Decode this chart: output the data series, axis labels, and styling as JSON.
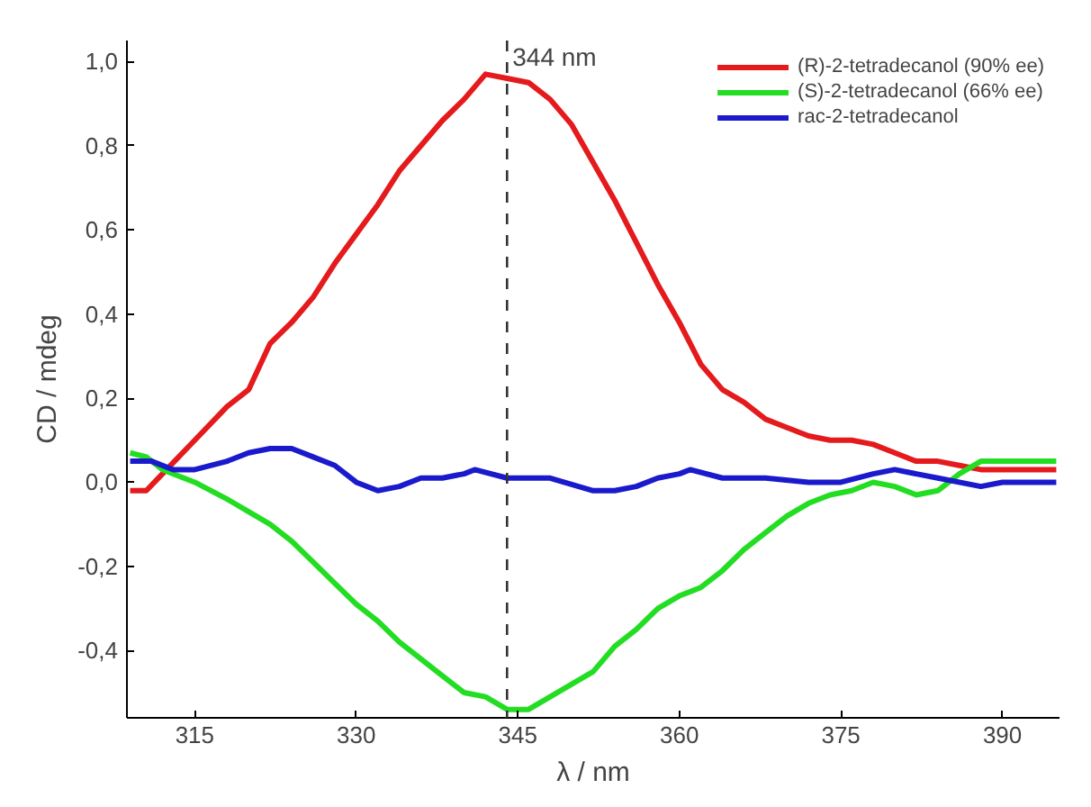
{
  "chart_data": {
    "type": "line",
    "xlabel": "λ / nm",
    "ylabel": "CD / mdeg",
    "xlim": [
      308.7,
      395.3
    ],
    "xticks": [
      315,
      330,
      345,
      360,
      375,
      390
    ],
    "ylim": [
      -0.56,
      1.05
    ],
    "yticks": [
      {
        "value": -0.4,
        "label": "-0,4"
      },
      {
        "value": -0.2,
        "label": "-0,2"
      },
      {
        "value": 0,
        "label": "0,0"
      },
      {
        "value": 0.2,
        "label": "0,2"
      },
      {
        "value": 0.4,
        "label": "0,4"
      },
      {
        "value": 0.6,
        "label": "0,6"
      },
      {
        "value": 0.8,
        "label": "0,8"
      },
      {
        "value": 1.0,
        "label": "1,0"
      }
    ],
    "grid": false,
    "legend": "top right",
    "line_style": "solid",
    "ref_lines": [
      {
        "axis": "x",
        "value": 344,
        "label": "344 nm",
        "line_style": "dashed",
        "color": "#333333"
      }
    ],
    "series": [
      {
        "name": "(R)-2-tetradecanol (90% ee)",
        "color": "#e41a1c",
        "x": [
          309,
          310.5,
          312,
          315,
          318,
          320,
          322,
          324,
          326,
          328,
          330,
          332,
          334,
          336,
          338,
          340,
          342,
          344,
          346,
          348,
          350,
          352,
          354,
          356,
          358,
          360,
          362,
          364,
          366,
          368,
          370,
          372,
          374,
          376,
          378,
          380,
          382,
          384,
          386,
          388,
          390,
          395
        ],
        "values": [
          -0.02,
          -0.02,
          0.02,
          0.1,
          0.18,
          0.22,
          0.33,
          0.38,
          0.44,
          0.52,
          0.59,
          0.66,
          0.74,
          0.8,
          0.86,
          0.91,
          0.97,
          0.96,
          0.95,
          0.91,
          0.85,
          0.76,
          0.67,
          0.57,
          0.47,
          0.38,
          0.28,
          0.22,
          0.19,
          0.15,
          0.13,
          0.11,
          0.1,
          0.1,
          0.09,
          0.07,
          0.05,
          0.05,
          0.04,
          0.03,
          0.03,
          0.03
        ]
      },
      {
        "name": "(S)-2-tetradecanol (66% ee)",
        "color": "#22dd22",
        "x": [
          309,
          310.5,
          312,
          315,
          318,
          320,
          322,
          324,
          326,
          328,
          330,
          332,
          334,
          336,
          338,
          340,
          342,
          344,
          346,
          348,
          350,
          352,
          354,
          356,
          358,
          360,
          362,
          364,
          366,
          368,
          370,
          372,
          374,
          376,
          378,
          380,
          382,
          384,
          386,
          388,
          390,
          395
        ],
        "values": [
          0.07,
          0.06,
          0.03,
          0.0,
          -0.04,
          -0.07,
          -0.1,
          -0.14,
          -0.19,
          -0.24,
          -0.29,
          -0.33,
          -0.38,
          -0.42,
          -0.46,
          -0.5,
          -0.51,
          -0.54,
          -0.54,
          -0.51,
          -0.48,
          -0.45,
          -0.39,
          -0.35,
          -0.3,
          -0.27,
          -0.25,
          -0.21,
          -0.16,
          -0.12,
          -0.08,
          -0.05,
          -0.03,
          -0.02,
          0.0,
          -0.01,
          -0.03,
          -0.02,
          0.02,
          0.05,
          0.05,
          0.05
        ]
      },
      {
        "name": "rac-2-tetradecanol",
        "color": "#1a1acc",
        "x": [
          309,
          311,
          313,
          315,
          318,
          320,
          322,
          324,
          326,
          328,
          330,
          332,
          334,
          336,
          338,
          340,
          341,
          344,
          348,
          352,
          354,
          356,
          358,
          360,
          361,
          364,
          368,
          372,
          375,
          378,
          380,
          384,
          388,
          390,
          395
        ],
        "values": [
          0.05,
          0.05,
          0.03,
          0.03,
          0.05,
          0.07,
          0.08,
          0.08,
          0.06,
          0.04,
          0.0,
          -0.02,
          -0.01,
          0.01,
          0.01,
          0.02,
          0.03,
          0.01,
          0.01,
          -0.02,
          -0.02,
          -0.01,
          0.01,
          0.02,
          0.03,
          0.01,
          0.01,
          0.0,
          0.0,
          0.02,
          0.03,
          0.01,
          -0.01,
          0.0,
          0.0
        ]
      }
    ]
  }
}
